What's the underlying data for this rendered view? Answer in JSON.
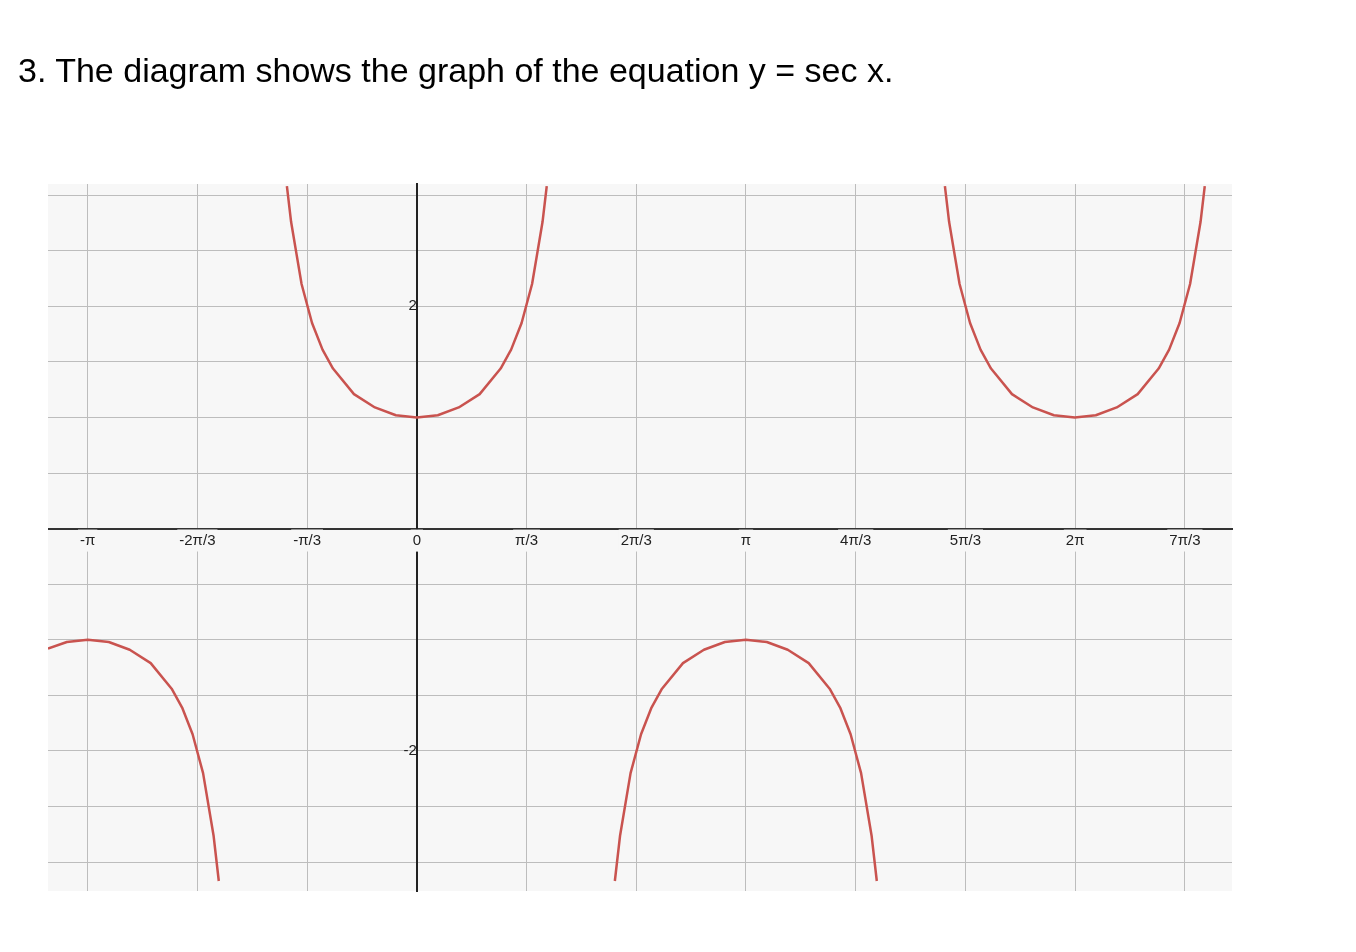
{
  "chart_data": {
    "type": "line",
    "title": "3. The diagram shows the graph of the equation y = sec x.",
    "series": [
      {
        "color": "#c9534f",
        "x": [
          -3.52,
          -3.34,
          -3.14,
          -2.94,
          -2.74,
          -2.54,
          -2.34,
          -2.24,
          -2.14,
          -2.04,
          -1.94,
          -1.89,
          -1.57,
          -1.24,
          -1.2,
          -1.1,
          -1.0,
          -0.9,
          -0.8,
          -0.6,
          -0.4,
          -0.2,
          0,
          0.2,
          0.4,
          0.6,
          0.8,
          0.9,
          1.0,
          1.1,
          1.2,
          1.24,
          1.57,
          1.89,
          1.94,
          2.04,
          2.14,
          2.24,
          2.34,
          2.54,
          2.74,
          2.94,
          3.14,
          3.34,
          3.54,
          3.74,
          3.94,
          4.04,
          4.14,
          4.24,
          4.34,
          4.39,
          4.71,
          5.04,
          5.08,
          5.18,
          5.28,
          5.38,
          5.48,
          5.68,
          5.88,
          6.08,
          6.28,
          6.48,
          6.68,
          6.88,
          7.08,
          7.18,
          7.28,
          7.38,
          7.48,
          7.52
        ],
        "values": [
          -1.08,
          -1.02,
          -1,
          -1.02,
          -1.09,
          -1.21,
          -1.44,
          -1.61,
          -1.85,
          -2.2,
          -2.76,
          -3.17,
          null,
          3.08,
          2.76,
          2.2,
          1.85,
          1.61,
          1.44,
          1.21,
          1.09,
          1.02,
          1,
          1.02,
          1.09,
          1.21,
          1.44,
          1.61,
          1.85,
          2.2,
          2.76,
          3.08,
          null,
          -3.17,
          -2.76,
          -2.2,
          -1.85,
          -1.61,
          -1.44,
          -1.21,
          -1.09,
          -1.02,
          -1,
          -1.02,
          -1.09,
          -1.21,
          -1.44,
          -1.61,
          -1.85,
          -2.2,
          -2.76,
          -3.17,
          null,
          3.08,
          2.76,
          2.2,
          1.85,
          1.61,
          1.44,
          1.21,
          1.09,
          1.02,
          1,
          1.02,
          1.09,
          1.21,
          1.44,
          1.61,
          1.85,
          2.2,
          2.76,
          3.08
        ]
      }
    ],
    "xlim": [
      -3.52,
      7.78
    ],
    "ylim": [
      -3.26,
      3.1
    ],
    "xticks": [
      {
        "value": -3.1416,
        "label": "-π"
      },
      {
        "value": -2.0944,
        "label": "-2π/3"
      },
      {
        "value": -1.0472,
        "label": "-π/3"
      },
      0,
      {
        "value": 1.0472,
        "label": "π/3"
      },
      {
        "value": 2.0944,
        "label": "2π/3"
      },
      {
        "value": 3.1416,
        "label": "π"
      },
      {
        "value": 4.1888,
        "label": "4π/3"
      },
      {
        "value": 5.236,
        "label": "5π/3"
      },
      {
        "value": 6.2832,
        "label": "2π"
      },
      {
        "value": 7.3304,
        "label": "7π/3"
      }
    ],
    "yticks": [
      {
        "value": -3,
        "label": null
      },
      {
        "value": -2.5,
        "label": null
      },
      -2,
      {
        "value": -1.5,
        "label": null
      },
      {
        "value": -1,
        "label": null
      },
      {
        "value": -0.5,
        "label": null
      },
      {
        "value": 0,
        "label": null
      },
      {
        "value": 0.5,
        "label": null
      },
      {
        "value": 1,
        "label": null
      },
      {
        "value": 1.5,
        "label": null
      },
      2,
      {
        "value": 2.5,
        "label": null
      },
      {
        "value": 3,
        "label": null
      }
    ],
    "grid": true,
    "legend": false,
    "marker": "none",
    "line_style": "solid"
  }
}
